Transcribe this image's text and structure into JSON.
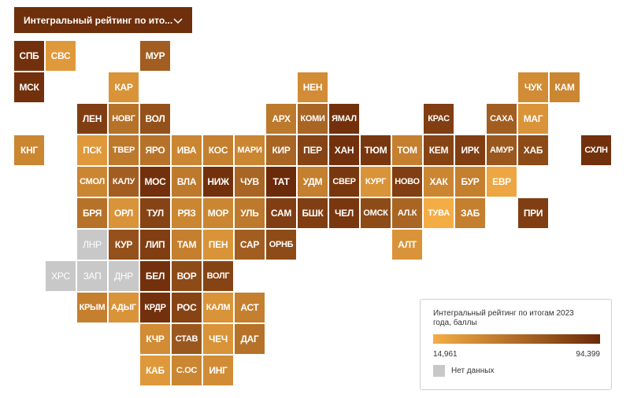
{
  "dropdown": {
    "label": "Интегральный рейтинг по ито..."
  },
  "legend": {
    "title": "Интегральный рейтинг по итогам 2023 года, баллы",
    "min_label": "14,961",
    "max_label": "94,399",
    "nodata_label": "Нет данных",
    "min_color": "#f4ad44",
    "max_color": "#6b2a09",
    "nodata_color": "#c8c8c8"
  },
  "regions": [
    {
      "code": "СПБ",
      "col": 0,
      "row": 0,
      "level": 0.95
    },
    {
      "code": "СВС",
      "col": 1,
      "row": 0,
      "level": 0.15
    },
    {
      "code": "МУР",
      "col": 4,
      "row": 0,
      "level": 0.6
    },
    {
      "code": "МСК",
      "col": 0,
      "row": 1,
      "level": 0.95
    },
    {
      "code": "КАР",
      "col": 3,
      "row": 1,
      "level": 0.2
    },
    {
      "code": "НЕН",
      "col": 9,
      "row": 1,
      "level": 0.25
    },
    {
      "code": "ЧУК",
      "col": 16,
      "row": 1,
      "level": 0.25
    },
    {
      "code": "КАМ",
      "col": 17,
      "row": 1,
      "level": 0.3
    },
    {
      "code": "ЛЕН",
      "col": 2,
      "row": 2,
      "level": 0.85
    },
    {
      "code": "НОВГ",
      "col": 3,
      "row": 2,
      "level": 0.45
    },
    {
      "code": "ВОЛ",
      "col": 4,
      "row": 2,
      "level": 0.7
    },
    {
      "code": "АРХ",
      "col": 8,
      "row": 2,
      "level": 0.4
    },
    {
      "code": "КОМИ",
      "col": 9,
      "row": 2,
      "level": 0.55
    },
    {
      "code": "ЯМАЛ",
      "col": 10,
      "row": 2,
      "level": 0.95
    },
    {
      "code": "КРАС",
      "col": 13,
      "row": 2,
      "level": 0.85
    },
    {
      "code": "САХА",
      "col": 15,
      "row": 2,
      "level": 0.6
    },
    {
      "code": "МАГ",
      "col": 16,
      "row": 2,
      "level": 0.2
    },
    {
      "code": "КНГ",
      "col": 0,
      "row": 3,
      "level": 0.3
    },
    {
      "code": "ПСК",
      "col": 2,
      "row": 3,
      "level": 0.15
    },
    {
      "code": "ТВЕР",
      "col": 3,
      "row": 3,
      "level": 0.4
    },
    {
      "code": "ЯРО",
      "col": 4,
      "row": 3,
      "level": 0.45
    },
    {
      "code": "ИВА",
      "col": 5,
      "row": 3,
      "level": 0.3
    },
    {
      "code": "КОС",
      "col": 6,
      "row": 3,
      "level": 0.35
    },
    {
      "code": "МАРИ",
      "col": 7,
      "row": 3,
      "level": 0.3
    },
    {
      "code": "КИР",
      "col": 8,
      "row": 3,
      "level": 0.55
    },
    {
      "code": "ПЕР",
      "col": 9,
      "row": 3,
      "level": 0.8
    },
    {
      "code": "ХАН",
      "col": 10,
      "row": 3,
      "level": 0.95
    },
    {
      "code": "ТЮМ",
      "col": 11,
      "row": 3,
      "level": 0.9
    },
    {
      "code": "ТОМ",
      "col": 12,
      "row": 3,
      "level": 0.35
    },
    {
      "code": "КЕМ",
      "col": 13,
      "row": 3,
      "level": 0.8
    },
    {
      "code": "ИРК",
      "col": 14,
      "row": 3,
      "level": 0.85
    },
    {
      "code": "АМУР",
      "col": 15,
      "row": 3,
      "level": 0.65
    },
    {
      "code": "ХАБ",
      "col": 16,
      "row": 3,
      "level": 0.75
    },
    {
      "code": "СХЛН",
      "col": 18,
      "row": 3,
      "level": 0.95
    },
    {
      "code": "СМОЛ",
      "col": 2,
      "row": 4,
      "level": 0.3
    },
    {
      "code": "КАЛУ",
      "col": 3,
      "row": 4,
      "level": 0.6
    },
    {
      "code": "МОС",
      "col": 4,
      "row": 4,
      "level": 0.95
    },
    {
      "code": "ВЛА",
      "col": 5,
      "row": 4,
      "level": 0.4
    },
    {
      "code": "НИЖ",
      "col": 6,
      "row": 4,
      "level": 0.95
    },
    {
      "code": "ЧУВ",
      "col": 7,
      "row": 4,
      "level": 0.55
    },
    {
      "code": "ТАТ",
      "col": 8,
      "row": 4,
      "level": 1.0
    },
    {
      "code": "УДМ",
      "col": 9,
      "row": 4,
      "level": 0.35
    },
    {
      "code": "СВЕР",
      "col": 10,
      "row": 4,
      "level": 0.9
    },
    {
      "code": "КУРГ",
      "col": 11,
      "row": 4,
      "level": 0.2
    },
    {
      "code": "НОВО",
      "col": 12,
      "row": 4,
      "level": 0.85
    },
    {
      "code": "ХАК",
      "col": 13,
      "row": 4,
      "level": 0.3
    },
    {
      "code": "БУР",
      "col": 14,
      "row": 4,
      "level": 0.35
    },
    {
      "code": "ЕВР",
      "col": 15,
      "row": 4,
      "level": 0.05
    },
    {
      "code": "БРЯ",
      "col": 2,
      "row": 5,
      "level": 0.45
    },
    {
      "code": "ОРЛ",
      "col": 3,
      "row": 5,
      "level": 0.2
    },
    {
      "code": "ТУЛ",
      "col": 4,
      "row": 5,
      "level": 0.8
    },
    {
      "code": "РЯЗ",
      "col": 5,
      "row": 5,
      "level": 0.3
    },
    {
      "code": "МОР",
      "col": 6,
      "row": 5,
      "level": 0.3
    },
    {
      "code": "УЛЬ",
      "col": 7,
      "row": 5,
      "level": 0.4
    },
    {
      "code": "САМ",
      "col": 8,
      "row": 5,
      "level": 0.85
    },
    {
      "code": "БШК",
      "col": 9,
      "row": 5,
      "level": 0.85
    },
    {
      "code": "ЧЕЛ",
      "col": 10,
      "row": 5,
      "level": 0.9
    },
    {
      "code": "ОМСК",
      "col": 11,
      "row": 5,
      "level": 0.75
    },
    {
      "code": "АЛ.К",
      "col": 12,
      "row": 5,
      "level": 0.55
    },
    {
      "code": "ТУВА",
      "col": 13,
      "row": 5,
      "level": 0.0
    },
    {
      "code": "ЗАБ",
      "col": 14,
      "row": 5,
      "level": 0.35
    },
    {
      "code": "ПРИ",
      "col": 16,
      "row": 5,
      "level": 0.85
    },
    {
      "code": "ЛНР",
      "col": 2,
      "row": 6,
      "nodata": true
    },
    {
      "code": "КУР",
      "col": 3,
      "row": 6,
      "level": 0.7
    },
    {
      "code": "ЛИП",
      "col": 4,
      "row": 6,
      "level": 0.85
    },
    {
      "code": "ТАМ",
      "col": 5,
      "row": 6,
      "level": 0.35
    },
    {
      "code": "ПЕН",
      "col": 6,
      "row": 6,
      "level": 0.2
    },
    {
      "code": "САР",
      "col": 7,
      "row": 6,
      "level": 0.6
    },
    {
      "code": "ОРНБ",
      "col": 8,
      "row": 6,
      "level": 0.75
    },
    {
      "code": "АЛТ",
      "col": 12,
      "row": 6,
      "level": 0.2
    },
    {
      "code": "ХРС",
      "col": 1,
      "row": 7,
      "nodata": true
    },
    {
      "code": "ЗАП",
      "col": 2,
      "row": 7,
      "nodata": true
    },
    {
      "code": "ДНР",
      "col": 3,
      "row": 7,
      "nodata": true
    },
    {
      "code": "БЕЛ",
      "col": 4,
      "row": 7,
      "level": 0.95
    },
    {
      "code": "ВОР",
      "col": 5,
      "row": 7,
      "level": 0.75
    },
    {
      "code": "ВОЛГ",
      "col": 6,
      "row": 7,
      "level": 0.8
    },
    {
      "code": "КРЫМ",
      "col": 2,
      "row": 8,
      "level": 0.35
    },
    {
      "code": "АДЫГ",
      "col": 3,
      "row": 8,
      "level": 0.2
    },
    {
      "code": "КРДР",
      "col": 4,
      "row": 8,
      "level": 0.95
    },
    {
      "code": "РОС",
      "col": 5,
      "row": 8,
      "level": 0.8
    },
    {
      "code": "КАЛМ",
      "col": 6,
      "row": 8,
      "level": 0.2
    },
    {
      "code": "АСТ",
      "col": 7,
      "row": 8,
      "level": 0.35
    },
    {
      "code": "КЧР",
      "col": 4,
      "row": 9,
      "level": 0.25
    },
    {
      "code": "СТАВ",
      "col": 5,
      "row": 9,
      "level": 0.65
    },
    {
      "code": "ЧЕЧ",
      "col": 6,
      "row": 9,
      "level": 0.2
    },
    {
      "code": "ДАГ",
      "col": 7,
      "row": 9,
      "level": 0.45
    },
    {
      "code": "КАБ",
      "col": 4,
      "row": 10,
      "level": 0.15
    },
    {
      "code": "С.ОС",
      "col": 5,
      "row": 10,
      "level": 0.3
    },
    {
      "code": "ИНГ",
      "col": 6,
      "row": 10,
      "level": 0.25
    }
  ]
}
